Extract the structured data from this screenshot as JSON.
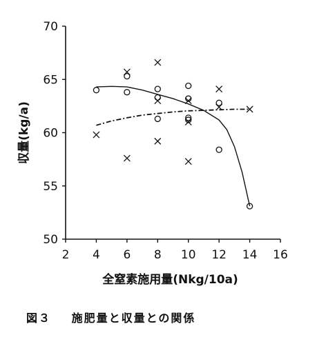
{
  "chart_data": {
    "type": "scatter",
    "xlabel": "全窒素施用量(Nkg/10a)",
    "ylabel": "収量(kg/a)",
    "xlim": [
      2,
      16
    ],
    "ylim": [
      50,
      70
    ],
    "x_ticks": [
      "2",
      "4",
      "6",
      "8",
      "10",
      "12",
      "14",
      "16"
    ],
    "y_ticks": [
      "50",
      "55",
      "60",
      "65",
      "70"
    ],
    "grid": false,
    "series": [
      {
        "marker": "circle",
        "points": [
          [
            4,
            64.0
          ],
          [
            6,
            65.3
          ],
          [
            6,
            63.8
          ],
          [
            8,
            64.1
          ],
          [
            8,
            63.3
          ],
          [
            8,
            61.3
          ],
          [
            10,
            64.4
          ],
          [
            10,
            63.2
          ],
          [
            10,
            61.4
          ],
          [
            10,
            61.2
          ],
          [
            12,
            62.8
          ],
          [
            12,
            58.4
          ],
          [
            14,
            53.1
          ]
        ],
        "trend": {
          "style": "solid",
          "points": [
            [
              4,
              64.3
            ],
            [
              5,
              64.35
            ],
            [
              6,
              64.3
            ],
            [
              7,
              64.0
            ],
            [
              8,
              63.6
            ],
            [
              9,
              63.2
            ],
            [
              10,
              62.7
            ],
            [
              11,
              62.1
            ],
            [
              12,
              61.2
            ],
            [
              12.5,
              60.3
            ],
            [
              13,
              58.7
            ],
            [
              13.5,
              56.3
            ],
            [
              14,
              53.1
            ]
          ]
        }
      },
      {
        "marker": "cross",
        "points": [
          [
            4,
            59.8
          ],
          [
            6,
            65.7
          ],
          [
            6,
            57.6
          ],
          [
            8,
            66.6
          ],
          [
            8,
            63.0
          ],
          [
            8,
            59.2
          ],
          [
            10,
            63.0
          ],
          [
            10,
            61.0
          ],
          [
            10,
            57.3
          ],
          [
            12,
            64.1
          ],
          [
            12,
            62.4
          ],
          [
            14,
            62.2
          ]
        ],
        "trend": {
          "style": "dash-dot",
          "points": [
            [
              4,
              60.7
            ],
            [
              5,
              61.1
            ],
            [
              6,
              61.4
            ],
            [
              7,
              61.65
            ],
            [
              8,
              61.8
            ],
            [
              9,
              61.95
            ],
            [
              10,
              62.05
            ],
            [
              11,
              62.1
            ],
            [
              12,
              62.15
            ],
            [
              13,
              62.2
            ],
            [
              14,
              62.2
            ]
          ]
        }
      }
    ]
  },
  "caption": {
    "label": "図３",
    "text": "施肥量と収量との関係"
  }
}
